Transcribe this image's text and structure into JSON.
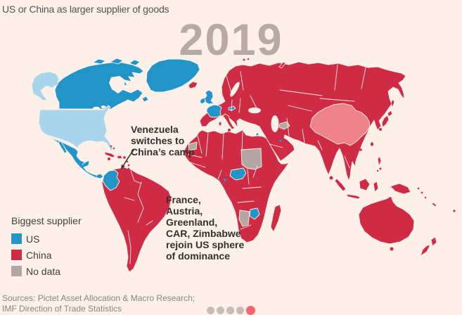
{
  "title": "US or China as larger supplier of goods",
  "year": "2019",
  "annotations": {
    "venezuela": {
      "lines": [
        "Venezuela",
        "switches to",
        "China’s camp"
      ]
    },
    "rejoin": {
      "lines": [
        "France,",
        "Austria,",
        "Greenland,",
        "CAR, Zimbabwe",
        "rejoin US sphere",
        "of dominance"
      ]
    }
  },
  "legend": {
    "title": "Biggest supplier",
    "items": [
      {
        "label": "US"
      },
      {
        "label": "China"
      },
      {
        "label": "No data"
      }
    ]
  },
  "sources": {
    "line1": "Sources: Pictet Asset Allocation & Macro Research;",
    "line2": "IMF Direction of Trade Statistics"
  },
  "pagination": {
    "count": 5,
    "active_index": 4
  },
  "colors": {
    "background": "#fdf0e9",
    "us_supplier": "#2295c8",
    "usa_self": "#a8d5ec",
    "china_supplier": "#cf2b44",
    "china_self": "#ee828a",
    "no_data": "#b3a6a3",
    "title_text": "#57514e",
    "year_text": "#b9a9a2",
    "annotation_text": "#33302e",
    "legend_text": "#45403b",
    "source_text": "#8c8280",
    "dot_inactive": "#c9bcb8",
    "dot_active": "#f8636c"
  },
  "chart_data": {
    "type": "choropleth_map",
    "title": "US or China as larger supplier of goods",
    "year": "2019",
    "legend_title": "Biggest supplier",
    "categories": [
      {
        "label": "US",
        "color": "#2295c8"
      },
      {
        "label": "China",
        "color": "#cf2b44"
      },
      {
        "label": "No data",
        "color": "#b3a6a3"
      }
    ],
    "callouts": [
      "Venezuela switches to China’s camp",
      "France, Austria, Greenland, CAR, Zimbabwe rejoin US sphere of dominance"
    ],
    "regions": {
      "us_supplier": [
        "Canada",
        "Mexico",
        "Central America",
        "Greenland",
        "Colombia",
        "Ecuador",
        "United Kingdom",
        "Ireland",
        "France",
        "Austria",
        "Central African Republic",
        "Zimbabwe",
        "Qatar",
        "Israel"
      ],
      "china_supplier": [
        "Russia",
        "Brazil",
        "Venezuela",
        "Argentina",
        "most of Africa",
        "continental Europe",
        "India",
        "Southeast Asia",
        "Australia",
        "New Zealand",
        "Japan",
        "Cuba",
        "Iceland"
      ],
      "self_shaded": {
        "united_states": "light blue",
        "china": "light red"
      },
      "no_data": [
        "Sudan",
        "Namibia",
        "Western Sahara",
        "Turkmenistan"
      ]
    },
    "sources": "Sources: Pictet Asset Allocation & Macro Research; IMF Direction of Trade Statistics"
  }
}
